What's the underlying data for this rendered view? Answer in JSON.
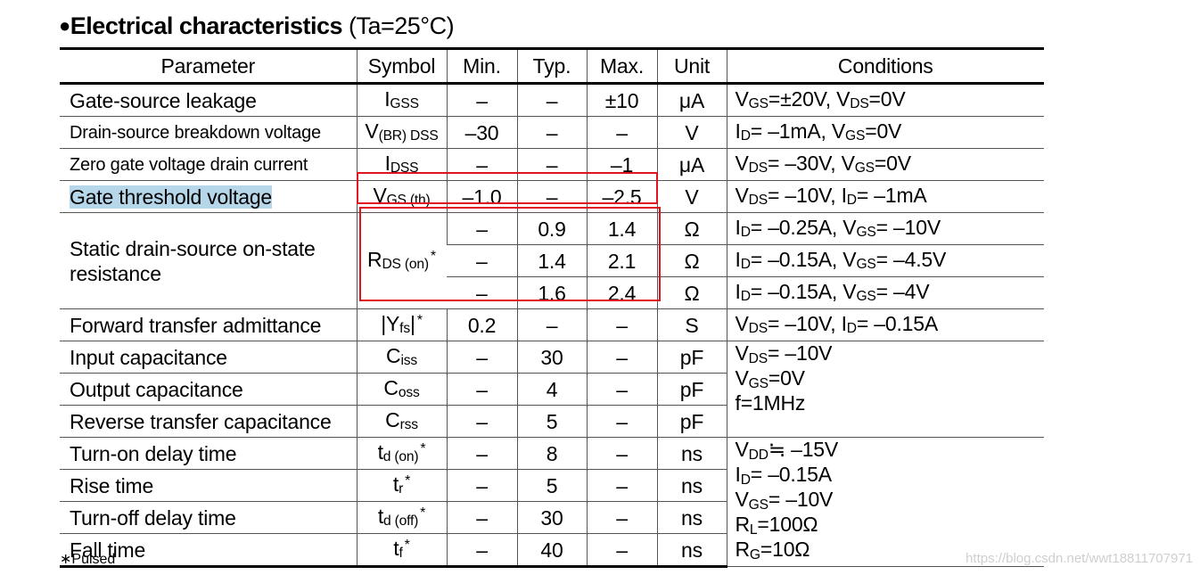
{
  "title": {
    "bullet": "●",
    "main": "Electrical characteristics",
    "condition": " (Ta=25°C)"
  },
  "headers": {
    "parameter": "Parameter",
    "symbol": "Symbol",
    "min": "Min.",
    "typ": "Typ.",
    "max": "Max.",
    "unit": "Unit",
    "conditions": "Conditions"
  },
  "rows": {
    "igss": {
      "parameter": "Gate-source leakage",
      "sym": "I",
      "sub": "GSS",
      "min": "–",
      "typ": "–",
      "max": "±10",
      "unit": "μA",
      "cond": [
        {
          "t": "V"
        },
        {
          "s": "GS"
        },
        {
          "t": "=±20V, V"
        },
        {
          "s": "DS"
        },
        {
          "t": "=0V"
        }
      ]
    },
    "vbr": {
      "parameter": "Drain-source breakdown voltage",
      "sym": "V",
      "sub": "(BR) DSS",
      "min": "–30",
      "typ": "–",
      "max": "–",
      "unit": "V",
      "cond": [
        {
          "t": "I"
        },
        {
          "s": "D"
        },
        {
          "t": "= –1mA, V"
        },
        {
          "s": "GS"
        },
        {
          "t": "=0V"
        }
      ]
    },
    "idss": {
      "parameter": "Zero gate voltage drain current",
      "sym": "I",
      "sub": "DSS",
      "min": "–",
      "typ": "–",
      "max": "–1",
      "unit": "μA",
      "cond": [
        {
          "t": "V"
        },
        {
          "s": "DS"
        },
        {
          "t": "= –30V, V"
        },
        {
          "s": "GS"
        },
        {
          "t": "=0V"
        }
      ]
    },
    "vth": {
      "parameter": "Gate threshold voltage",
      "sym": "V",
      "sub": "GS (th)",
      "min": "–1.0",
      "typ": "–",
      "max": "–2.5",
      "unit": "V",
      "cond": [
        {
          "t": "V"
        },
        {
          "s": "DS"
        },
        {
          "t": "= –10V, I"
        },
        {
          "s": "D"
        },
        {
          "t": "= –1mA"
        }
      ]
    },
    "rds": {
      "parameter": "Static drain-source on-state resistance",
      "sym": "R",
      "sub": "DS (on)",
      "star": "*",
      "r1": {
        "min": "–",
        "typ": "0.9",
        "max": "1.4",
        "unit": "Ω",
        "cond": [
          {
            "t": "I"
          },
          {
            "s": "D"
          },
          {
            "t": "= –0.25A, V"
          },
          {
            "s": "GS"
          },
          {
            "t": "= –10V"
          }
        ]
      },
      "r2": {
        "min": "–",
        "typ": "1.4",
        "max": "2.1",
        "unit": "Ω",
        "cond": [
          {
            "t": "I"
          },
          {
            "s": "D"
          },
          {
            "t": "= –0.15A, V"
          },
          {
            "s": "GS"
          },
          {
            "t": "= –4.5V"
          }
        ]
      },
      "r3": {
        "min": "–",
        "typ": "1.6",
        "max": "2.4",
        "unit": "Ω",
        "cond": [
          {
            "t": "I"
          },
          {
            "s": "D"
          },
          {
            "t": "= –0.15A, V"
          },
          {
            "s": "GS"
          },
          {
            "t": "= –4V"
          }
        ]
      }
    },
    "yfs": {
      "parameter": "Forward transfer admittance",
      "sym": "|Y",
      "sub": "fs",
      "sym_end": "|",
      "star": "*",
      "min": "0.2",
      "typ": "–",
      "max": "–",
      "unit": "S",
      "cond": [
        {
          "t": "V"
        },
        {
          "s": "DS"
        },
        {
          "t": "= –10V, I"
        },
        {
          "s": "D"
        },
        {
          "t": "= –0.15A"
        }
      ]
    },
    "ciss": {
      "parameter": "Input capacitance",
      "sym": "C",
      "sub": "iss",
      "min": "–",
      "typ": "30",
      "max": "–",
      "unit": "pF"
    },
    "coss": {
      "parameter": "Output capacitance",
      "sym": "C",
      "sub": "oss",
      "min": "–",
      "typ": "4",
      "max": "–",
      "unit": "pF"
    },
    "crss": {
      "parameter": "Reverse transfer capacitance",
      "sym": "C",
      "sub": "rss",
      "min": "–",
      "typ": "5",
      "max": "–",
      "unit": "pF"
    },
    "td_on": {
      "parameter": "Turn-on delay time",
      "sym": "t",
      "sub": "d (on)",
      "star": "*",
      "min": "–",
      "typ": "8",
      "max": "–",
      "unit": "ns"
    },
    "tr": {
      "parameter": "Rise time",
      "sym": "t",
      "sub": "r",
      "star": "*",
      "min": "–",
      "typ": "5",
      "max": "–",
      "unit": "ns"
    },
    "td_off": {
      "parameter": "Turn-off delay time",
      "sym": "t",
      "sub": "d (off)",
      "star": "*",
      "min": "–",
      "typ": "30",
      "max": "–",
      "unit": "ns"
    },
    "tf": {
      "parameter": "Fall time",
      "sym": "t",
      "sub": "f",
      "star": "*",
      "min": "–",
      "typ": "40",
      "max": "–",
      "unit": "ns"
    }
  },
  "cap_conditions": [
    [
      {
        "t": "V"
      },
      {
        "s": "DS"
      },
      {
        "t": "= –10V"
      }
    ],
    [
      {
        "t": "V"
      },
      {
        "s": "GS"
      },
      {
        "t": "=0V"
      }
    ],
    [
      {
        "t": "f=1MHz"
      }
    ]
  ],
  "switch_conditions": [
    [
      {
        "t": "V"
      },
      {
        "s": "DD"
      },
      {
        "t": "≒ –15V"
      }
    ],
    [
      {
        "t": "I"
      },
      {
        "s": "D"
      },
      {
        "t": "= –0.15A"
      }
    ],
    [
      {
        "t": "V"
      },
      {
        "s": "GS"
      },
      {
        "t": "= –10V"
      }
    ],
    [
      {
        "t": "R"
      },
      {
        "s": "L"
      },
      {
        "t": "=100Ω"
      }
    ],
    [
      {
        "t": "R"
      },
      {
        "s": "G"
      },
      {
        "t": "=10Ω"
      }
    ]
  ],
  "footnote": "∗Pulsed",
  "watermark": "https://blog.csdn.net/wwt18811707971",
  "colors": {
    "highlight_box": "#e0141e",
    "text_highlight": "#b6d6ea"
  }
}
